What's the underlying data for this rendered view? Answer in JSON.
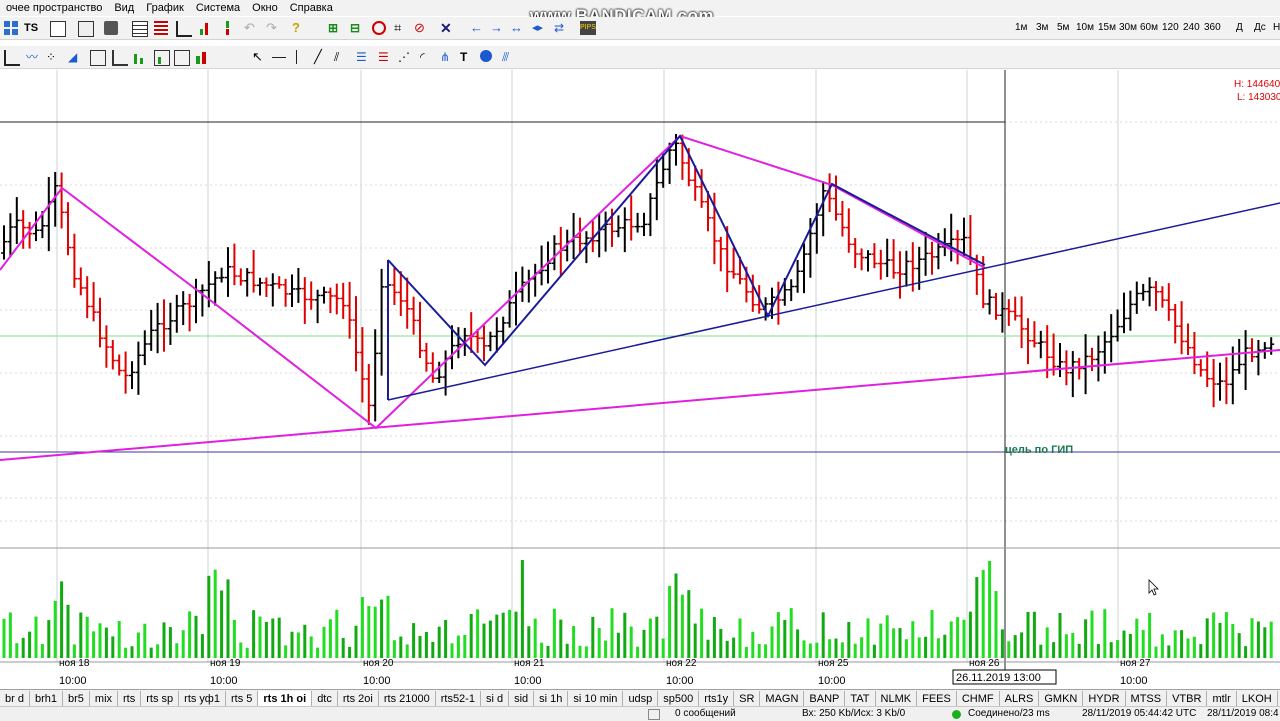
{
  "menu": [
    "очее пространство",
    "Вид",
    "График",
    "Система",
    "Окно",
    "Справка"
  ],
  "watermark": "www.BANDICAM.com",
  "timeframes": [
    "1м",
    "3м",
    "5м",
    "10м",
    "15м",
    "30м",
    "60м",
    "120",
    "240",
    "360",
    "Д",
    "Дс",
    "Н"
  ],
  "toolbar_icons": [
    "grid-icon",
    "ts-icon",
    "calculator-icon",
    "print-icon",
    "table-icon",
    "list-icon",
    "bar-icon",
    "undo-icon",
    "redo-icon",
    "help-icon",
    "cursor-icon",
    "line-icon",
    "text-icon",
    "pips-icon"
  ],
  "chart": {
    "hl_high": "H: 144640",
    "hl_low": "L: 143030",
    "annotation": "цель по ГИП",
    "crosshair_time": "26.11.2019  13:00",
    "colors": {
      "up": "#000000",
      "down": "#e00000",
      "zigzag": "#e020e0",
      "trend": "#1a1a9a",
      "level": "#80e080",
      "vol": "#22dd22"
    },
    "date_labels": [
      "ноя 18",
      "ноя 19",
      "ноя 20",
      "ноя 21",
      "ноя 22",
      "ноя 25",
      "ноя 26",
      "ноя 27"
    ],
    "time_labels": [
      "10:00",
      "10:00",
      "10:00",
      "10:00",
      "10:00",
      "10:00",
      "10:00"
    ]
  },
  "tabs": [
    "br d",
    "brh1",
    "br5",
    "mix",
    "rts",
    "rts sp",
    "rts уф1",
    "rts 5",
    "rts 1h oi",
    "dtc",
    "rts 2oi",
    "rts 21000",
    "rts52-1",
    "si d",
    "sid",
    "si 1h",
    "si 10 min",
    "udsp",
    "sp500",
    "rts1y",
    "SR",
    "MAGN",
    "BANP",
    "TAT",
    "NLMK",
    "FEES",
    "CHMF",
    "ALRS",
    "GMKN",
    "HYDR",
    "MTSS",
    "VTBR",
    "mtlr",
    "LKOH"
  ],
  "active_tab": "rts 1h oi",
  "status": {
    "messages": "0 сообщений",
    "traffic": "Вх: 250 Kb/Исх: 3 Kb/0",
    "connection": "Соединено/23 ms",
    "time_utc": "28/11/2019 05:44:42 UTC",
    "time_local": "28/11/2019 08:4"
  }
}
